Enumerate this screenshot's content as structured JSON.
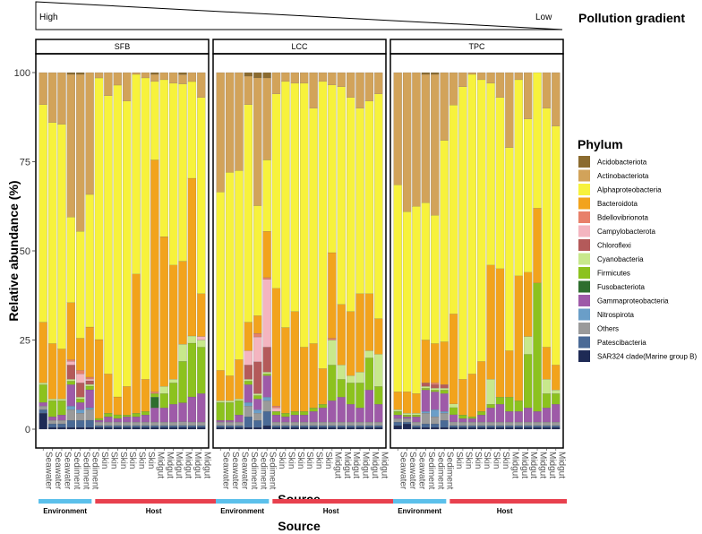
{
  "gradient": {
    "title": "Pollution gradient",
    "high_label": "High",
    "low_label": "Low"
  },
  "legend": {
    "title": "Phylum"
  },
  "group_labels": {
    "environment": "Environment",
    "host": "Host"
  },
  "group_colors": {
    "environment": "#5BC0EB",
    "host": "#E8404E"
  },
  "colors": {
    "Acidobacteriota": "#8B6B2F",
    "Actinobacteriota": "#D2A35A",
    "Alphaproteobacteria": "#F7F23C",
    "Bacteroidota": "#F2A31C",
    "Bdellovibrionota": "#E8806A",
    "Campylobacterota": "#F4B5C0",
    "Chloroflexi": "#B45A5A",
    "Cyanobacteria": "#C8E88C",
    "Firmicutes": "#8CC21E",
    "Fusobacteriota": "#2E6E2E",
    "Gammaproteobacteria": "#9E5AA8",
    "Nitrospirota": "#6A9EC8",
    "Others": "#9A9A9A",
    "Patescibacteria": "#4A6A96",
    "SAR324 clade(Marine group B)": "#1E2A55"
  },
  "chart_data": {
    "type": "bar",
    "stacked": true,
    "xlabel": "Source",
    "ylabel": "Relative abundance (%)",
    "ylim": [
      0,
      100
    ],
    "yticks": [
      0,
      25,
      50,
      75,
      100
    ],
    "facets": [
      "SFB",
      "LCC",
      "TPC"
    ],
    "categories": [
      "Seawater",
      "Seawater",
      "Seawater",
      "Sediment",
      "Sediment",
      "Sediment",
      "Skin",
      "Skin",
      "Skin",
      "Skin",
      "Skin",
      "Skin",
      "Midgut",
      "Midgut",
      "Midgut",
      "Midgut",
      "Midgut",
      "Midgut"
    ],
    "category_groups": [
      "Environment",
      "Environment",
      "Environment",
      "Environment",
      "Environment",
      "Environment",
      "Host",
      "Host",
      "Host",
      "Host",
      "Host",
      "Host",
      "Host",
      "Host",
      "Host",
      "Host",
      "Host",
      "Host"
    ],
    "phyla": [
      "SAR324 clade(Marine group B)",
      "Patescibacteria",
      "Others",
      "Nitrospirota",
      "Gammaproteobacteria",
      "Fusobacteriota",
      "Firmicutes",
      "Cyanobacteria",
      "Chloroflexi",
      "Campylobacterota",
      "Bdellovibrionota",
      "Bacteroidota",
      "Alphaproteobacteria",
      "Actinobacteriota",
      "Acidobacteriota"
    ],
    "legend_order": [
      "Acidobacteriota",
      "Actinobacteriota",
      "Alphaproteobacteria",
      "Bacteroidota",
      "Bdellovibrionota",
      "Campylobacterota",
      "Chloroflexi",
      "Cyanobacteria",
      "Firmicutes",
      "Fusobacteriota",
      "Gammaproteobacteria",
      "Nitrospirota",
      "Others",
      "Patescibacteria",
      "SAR324 clade(Marine group B)"
    ],
    "bars": {
      "SFB": [
        [
          4.5,
          1,
          1,
          0,
          1,
          0,
          5,
          0.5,
          0,
          0,
          0,
          17,
          61,
          9,
          0
        ],
        [
          0.5,
          1,
          1,
          0,
          1,
          0,
          4.5,
          0.5,
          0,
          0,
          0,
          15.5,
          62,
          14,
          0
        ],
        [
          0.5,
          1,
          1,
          0,
          1.5,
          0,
          4,
          0.5,
          0,
          0,
          0,
          14,
          63,
          14.5,
          0
        ],
        [
          0.5,
          2,
          3,
          1,
          6,
          0,
          1,
          0.5,
          4,
          1,
          0.5,
          16,
          24,
          40,
          0.5
        ],
        [
          0.5,
          2,
          2,
          1,
          2,
          0,
          1,
          0.5,
          4,
          2.5,
          1,
          9,
          30,
          44,
          0.5
        ],
        [
          0.5,
          2,
          3,
          0.5,
          5,
          0,
          1,
          0.5,
          1,
          0.5,
          0.5,
          14,
          37,
          34,
          0
        ],
        [
          0.5,
          0.5,
          1,
          0,
          0.5,
          0,
          0.5,
          0,
          0,
          0,
          0,
          22,
          73,
          1.5,
          0
        ],
        [
          0.5,
          0.5,
          1,
          0,
          1.5,
          0,
          1,
          0,
          0,
          0,
          0,
          11,
          78,
          6.5,
          0
        ],
        [
          0.5,
          0.5,
          1,
          0,
          1,
          0,
          1,
          0,
          0,
          0,
          0,
          5,
          87,
          3.5,
          0
        ],
        [
          0.5,
          0.5,
          1,
          0,
          1.5,
          0,
          0.5,
          0,
          0,
          0,
          0,
          8,
          80,
          8,
          0
        ],
        [
          0.5,
          0.5,
          1,
          0,
          1.5,
          0,
          1,
          0,
          0,
          0,
          0,
          39,
          56,
          0.5,
          0
        ],
        [
          0.5,
          0.5,
          1,
          0,
          2,
          0,
          1,
          0,
          0,
          0,
          0,
          9,
          84.5,
          1.5,
          0
        ],
        [
          0.5,
          0.5,
          1,
          0,
          4,
          3,
          1,
          0,
          0,
          0,
          0.5,
          65,
          22,
          2,
          0.5
        ],
        [
          0.5,
          0.5,
          1,
          0,
          4,
          0,
          4,
          2,
          0,
          0,
          0,
          42,
          44,
          2,
          0
        ],
        [
          0.5,
          0.5,
          1,
          0,
          5,
          0,
          6,
          1,
          0,
          0,
          0,
          32,
          51,
          3,
          0
        ],
        [
          0.5,
          0.5,
          1,
          0,
          5,
          0,
          11,
          4.5,
          0,
          0,
          0,
          22,
          47,
          2.5,
          0.5
        ],
        [
          0.5,
          0.5,
          1,
          0,
          7,
          0,
          15,
          2,
          0,
          0,
          0,
          44,
          27,
          2.5,
          0
        ],
        [
          0.5,
          0.5,
          1,
          0,
          8,
          0,
          13,
          2,
          0,
          1,
          0,
          12,
          55,
          7,
          0
        ]
      ],
      "LCC": [
        [
          0.5,
          0.5,
          1,
          0,
          0.5,
          0,
          5,
          0.5,
          0,
          0,
          0,
          8.5,
          50,
          33.5,
          0
        ],
        [
          0.5,
          0.5,
          1,
          0,
          0.5,
          0,
          5,
          0.5,
          0,
          0,
          0,
          7,
          57,
          28,
          0
        ],
        [
          0.5,
          0.5,
          1,
          0,
          2,
          0,
          4,
          0.5,
          0,
          0,
          0,
          11,
          53,
          27.5,
          0
        ],
        [
          0.5,
          3,
          3,
          1,
          5,
          0,
          1,
          0.5,
          4,
          4,
          0,
          8,
          61,
          8,
          1
        ],
        [
          0.5,
          2,
          2,
          1,
          3,
          0,
          1,
          0.5,
          9,
          7,
          1,
          5,
          31,
          36,
          1.5
        ],
        [
          1,
          4,
          3,
          1,
          6,
          0,
          0.5,
          0.5,
          7,
          19,
          0.5,
          13,
          20,
          23,
          1.5
        ],
        [
          0.5,
          0.5,
          1,
          0,
          2,
          0,
          1,
          0,
          0,
          1,
          0.5,
          33,
          54.5,
          6,
          0
        ],
        [
          0.5,
          0.5,
          1,
          0,
          1.5,
          0,
          1,
          0,
          0,
          0,
          0,
          24,
          69,
          2.5,
          0
        ],
        [
          0.5,
          0.5,
          1,
          0,
          2,
          0,
          1,
          0,
          0,
          0,
          0,
          28,
          64,
          3,
          0
        ],
        [
          0.5,
          0.5,
          1,
          0,
          2,
          0,
          1,
          0,
          0,
          0,
          0,
          18,
          74,
          3,
          0
        ],
        [
          0.5,
          0.5,
          1,
          0,
          3,
          0,
          1,
          0,
          0,
          0,
          0,
          18,
          66,
          10,
          0
        ],
        [
          0.5,
          0.5,
          1,
          0,
          4,
          0,
          1,
          0,
          0,
          0,
          0,
          10,
          80.5,
          2.5,
          0
        ],
        [
          0.5,
          0.5,
          1,
          0,
          6,
          0,
          10,
          7,
          0,
          0,
          0.5,
          24,
          47,
          3.5,
          0
        ],
        [
          0.5,
          0.5,
          1,
          0,
          7,
          0,
          5,
          4,
          0,
          0,
          0,
          17,
          61,
          4,
          0
        ],
        [
          0.5,
          0.5,
          1,
          0,
          5,
          0,
          6,
          2,
          0,
          0,
          0,
          18,
          60,
          7,
          0
        ],
        [
          0.5,
          0.5,
          1,
          0,
          4,
          0,
          7,
          3,
          0,
          0,
          0,
          22,
          52,
          10,
          0
        ],
        [
          0.5,
          0.5,
          1,
          0,
          9,
          0,
          9,
          2,
          0,
          0,
          0,
          16,
          54,
          8,
          0
        ],
        [
          0.5,
          0.5,
          1,
          0,
          5,
          0,
          5,
          9,
          0,
          0,
          0,
          10,
          63,
          6,
          0
        ]
      ],
      "TPC": [
        [
          1,
          1,
          1,
          0,
          1,
          0,
          1,
          0.5,
          0,
          0,
          0,
          5,
          58,
          31.5,
          0
        ],
        [
          1.5,
          0.5,
          1,
          0,
          0.5,
          0,
          0.5,
          0.5,
          0,
          0,
          0,
          6,
          50.5,
          39,
          0
        ],
        [
          0.5,
          0.5,
          1,
          0,
          1.5,
          0,
          0.5,
          0.5,
          0,
          0,
          0,
          5.5,
          52.5,
          37.5,
          0
        ],
        [
          0.5,
          1,
          3,
          0.5,
          6,
          0,
          0.5,
          0.5,
          1,
          0,
          0,
          12,
          38.5,
          36,
          0.5
        ],
        [
          0.5,
          1,
          2,
          2,
          5,
          0,
          0.5,
          0.5,
          1,
          0,
          0.5,
          11,
          36,
          39.5,
          0.5
        ],
        [
          0.5,
          2,
          2,
          0.5,
          5,
          0,
          1,
          0.5,
          1,
          0,
          0,
          12,
          56.5,
          19,
          0
        ],
        [
          0.5,
          0.5,
          1,
          0,
          2,
          0,
          2,
          1,
          0,
          0,
          0,
          25,
          58,
          9,
          0
        ],
        [
          0.5,
          0.5,
          1,
          0,
          1,
          0,
          1,
          0,
          0,
          0,
          0,
          10,
          82,
          4,
          0
        ],
        [
          0.5,
          0.5,
          1,
          0,
          1,
          0,
          0.5,
          0,
          0,
          0,
          0,
          12,
          84,
          0.5,
          0
        ],
        [
          0.5,
          0.5,
          1,
          0,
          2,
          0,
          1,
          0,
          0,
          0,
          0,
          14,
          79,
          2,
          0
        ],
        [
          0.5,
          0.5,
          1,
          0,
          4,
          0,
          1,
          7,
          0,
          0,
          0,
          32,
          51,
          3,
          0
        ],
        [
          0.5,
          0.5,
          1,
          0,
          5,
          0,
          2,
          0,
          0,
          0,
          0,
          36,
          48,
          7,
          0
        ],
        [
          0.5,
          0.5,
          1,
          0,
          3,
          0,
          4,
          0,
          0,
          0,
          0,
          13,
          57,
          21,
          0
        ],
        [
          0.5,
          0.5,
          1,
          0,
          3,
          0,
          3,
          0,
          0,
          0,
          0,
          35,
          55,
          2,
          0
        ],
        [
          0.5,
          0.5,
          1,
          0,
          4,
          0,
          15,
          5,
          0,
          0,
          0,
          18,
          43,
          13,
          0
        ],
        [
          0.5,
          0.5,
          1,
          0,
          3,
          0,
          36,
          0,
          0,
          0,
          0,
          21,
          38,
          0,
          0
        ],
        [
          0.5,
          0.5,
          1,
          0,
          4,
          0,
          4,
          4,
          0,
          0,
          0,
          9,
          67,
          10,
          0
        ],
        [
          0.5,
          0.5,
          1,
          0,
          5,
          0,
          3,
          1,
          0,
          0,
          0,
          7,
          67,
          15,
          0
        ]
      ]
    }
  }
}
